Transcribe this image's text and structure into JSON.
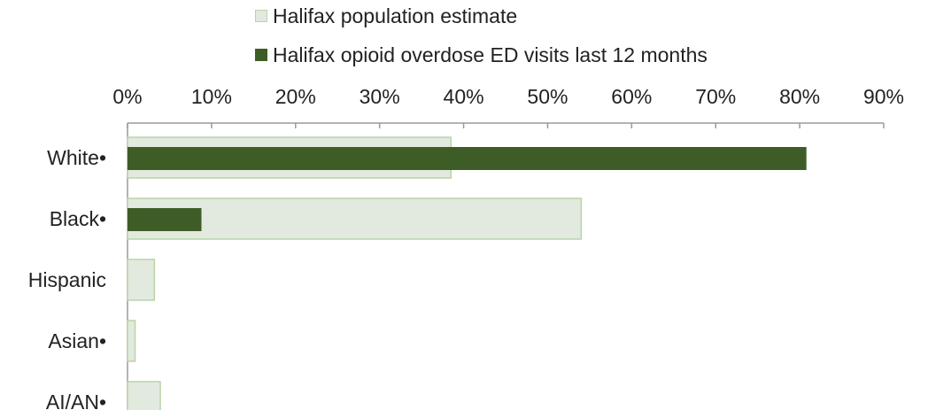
{
  "chart_data": {
    "type": "bar",
    "orientation": "horizontal",
    "categories": [
      "White•",
      "Black•",
      "Hispanic",
      "Asian•",
      "AI/AN•"
    ],
    "series": [
      {
        "name": "Halifax population estimate",
        "values": [
          38.5,
          54,
          3.2,
          0.9,
          3.9
        ],
        "color": "#e2eadf",
        "stroke": "#b9d4a8"
      },
      {
        "name": "Halifax opioid overdose ED visits last 12 months",
        "values": [
          80.8,
          8.8,
          0,
          0,
          0
        ],
        "color": "#3e5d26"
      }
    ],
    "xlim": [
      0,
      90
    ],
    "xticks": [
      0,
      10,
      20,
      30,
      40,
      50,
      60,
      70,
      80,
      90
    ],
    "xtick_labels": [
      "0%",
      "10%",
      "20%",
      "30%",
      "40%",
      "50%",
      "60%",
      "70%",
      "80%",
      "90%"
    ],
    "axis_position": "top",
    "legend_position": "top",
    "grid": false,
    "title": "",
    "xlabel": "",
    "ylabel": ""
  }
}
